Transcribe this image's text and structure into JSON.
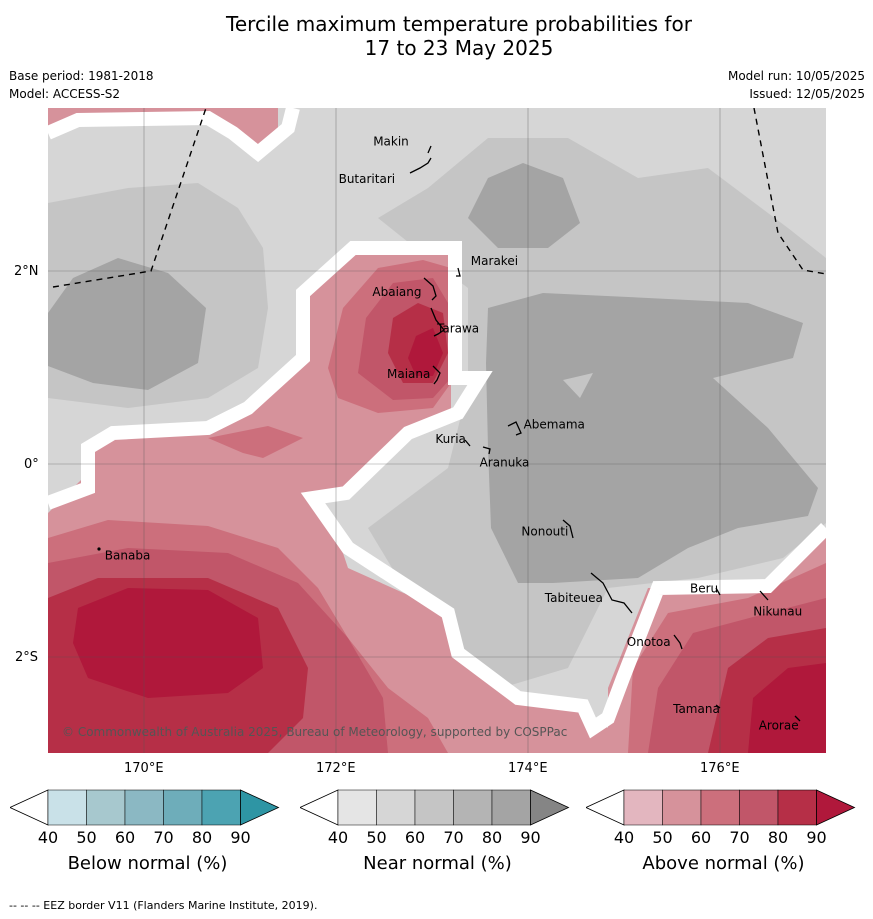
{
  "header": {
    "title_line1": "Tercile maximum temperature probabilities for",
    "title_line2": "17 to 23 May 2025",
    "base_period": "Base period: 1981-2018",
    "model": "Model: ACCESS-S2",
    "model_run": "Model run: 10/05/2025",
    "issued": "Issued: 12/05/2025"
  },
  "axes": {
    "lat_labels": [
      "2°N",
      "0°",
      "2°S"
    ],
    "lon_labels": [
      "170°E",
      "172°E",
      "174°E",
      "176°E"
    ]
  },
  "places": [
    {
      "name": "Makin",
      "lon": 172.7,
      "lat": 3.35
    },
    {
      "name": "Butaritari",
      "lon": 172.6,
      "lat": 3.0
    },
    {
      "name": "Marakei",
      "lon": 173.3,
      "lat": 2.0
    },
    {
      "name": "Abaiang",
      "lon": 172.9,
      "lat": 1.8
    },
    {
      "name": "Tarawa",
      "lon": 173.0,
      "lat": 1.4
    },
    {
      "name": "Maiana",
      "lon": 173.0,
      "lat": 0.95
    },
    {
      "name": "Abemama",
      "lon": 173.85,
      "lat": 0.4
    },
    {
      "name": "Kuria",
      "lon": 173.4,
      "lat": 0.25
    },
    {
      "name": "Aranuka",
      "lon": 173.6,
      "lat": 0.15
    },
    {
      "name": "Nonouti",
      "lon": 174.4,
      "lat": -0.65
    },
    {
      "name": "Banaba",
      "lon": 169.55,
      "lat": -0.86
    },
    {
      "name": "Tabiteuea",
      "lon": 174.8,
      "lat": -1.3
    },
    {
      "name": "Beru",
      "lon": 176.0,
      "lat": -1.33
    },
    {
      "name": "Nikunau",
      "lon": 176.45,
      "lat": -1.38
    },
    {
      "name": "Onotoa",
      "lon": 175.55,
      "lat": -1.8
    },
    {
      "name": "Tamana",
      "lon": 175.98,
      "lat": -2.5
    },
    {
      "name": "Arorae",
      "lon": 176.82,
      "lat": -2.65
    }
  ],
  "copyright": "© Commonwealth of Australia 2025, Bureau of Meteorology, supported by COSPPac",
  "colorbars": [
    {
      "label": "Below normal (%)",
      "ticks": [
        "40",
        "50",
        "60",
        "70",
        "80",
        "90"
      ],
      "colors": [
        "#ffffff",
        "#c9e1e8",
        "#a7c8ce",
        "#8bb8c3",
        "#6eadba",
        "#4ca3b2",
        "#2e95a4"
      ]
    },
    {
      "label": "Near normal (%)",
      "ticks": [
        "40",
        "50",
        "60",
        "70",
        "80",
        "90"
      ],
      "colors": [
        "#ffffff",
        "#e5e5e5",
        "#d6d6d6",
        "#c5c5c5",
        "#b4b4b4",
        "#a4a4a4",
        "#858585"
      ]
    },
    {
      "label": "Above normal (%)",
      "ticks": [
        "40",
        "50",
        "60",
        "70",
        "80",
        "90"
      ],
      "colors": [
        "#ffffff",
        "#e3b6bf",
        "#d6929b",
        "#cc6f7c",
        "#c15669",
        "#b62f47",
        "#b0183b"
      ]
    }
  ],
  "footer": "-- -- -- EEZ border V11 (Flanders Marine Institute, 2019).",
  "colors": {
    "near_light": "#d6d6d6",
    "near_mid": "#c5c5c5",
    "near_dark": "#a4a4a4",
    "above_50": "#d6929b",
    "above_60": "#cc6f7c",
    "above_70": "#c15669",
    "above_80": "#b62f47",
    "above_90": "#b0183b"
  }
}
